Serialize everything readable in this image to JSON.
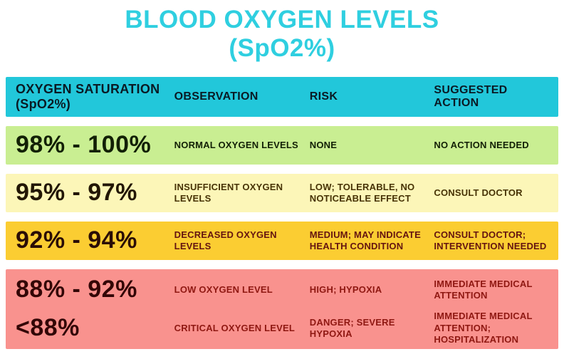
{
  "title": {
    "line1": "BLOOD OXYGEN LEVELS",
    "line2": "(SpO2%)"
  },
  "colors": {
    "title_text": "#2fcfe0",
    "header_bg": "#22c7da",
    "header_text": "#0a1a24",
    "row_green_bg": "#c9ee92",
    "row_green_text": "#122005",
    "row_paleyellow_bg": "#fcf6b8",
    "row_paleyellow_range_text": "#221604",
    "row_paleyellow_small_text": "#473305",
    "row_gold_bg": "#fbcd32",
    "row_gold_range_text": "#2a0d06",
    "row_gold_small_text": "#641410",
    "row_red_bg": "#f9928e",
    "row_red_range_text": "#330606",
    "row_red_small_text": "#8f1812"
  },
  "header": {
    "saturation_line1": "OXYGEN SATURATION",
    "saturation_line2": "(SpO2%)",
    "observation": "OBSERVATION",
    "risk": "RISK",
    "action": "SUGGESTED ACTION"
  },
  "rows": [
    {
      "range": "98% - 100%",
      "observation": "NORMAL OXYGEN LEVELS",
      "risk": "NONE",
      "action": "NO ACTION NEEDED"
    },
    {
      "range": "95% - 97%",
      "observation": "INSUFFICIENT OXYGEN LEVELS",
      "risk": "LOW; TOLERABLE, NO NOTICEABLE EFFECT",
      "action": "CONSULT DOCTOR"
    },
    {
      "range": "92% - 94%",
      "observation": "DECREASED OXYGEN LEVELS",
      "risk": "MEDIUM; MAY INDICATE HEALTH CONDITION",
      "action": "CONSULT DOCTOR; INTERVENTION NEEDED"
    },
    {
      "range": "88% - 92%",
      "observation": "LOW OXYGEN LEVEL",
      "risk": "HIGH; HYPOXIA",
      "action": "IMMEDIATE MEDICAL ATTENTION"
    },
    {
      "range": "<88%",
      "observation": "CRITICAL OXYGEN LEVEL",
      "risk": "DANGER; SEVERE HYPOXIA",
      "action": "IMMEDIATE MEDICAL ATTENTION; HOSPITALIZATION"
    }
  ],
  "chart_data": {
    "type": "table",
    "title": "BLOOD OXYGEN LEVELS (SpO2%)",
    "columns": [
      "OXYGEN SATURATION (SpO2%)",
      "OBSERVATION",
      "RISK",
      "SUGGESTED ACTION"
    ],
    "rows": [
      [
        "98% - 100%",
        "NORMAL OXYGEN LEVELS",
        "NONE",
        "NO ACTION NEEDED"
      ],
      [
        "95% - 97%",
        "INSUFFICIENT OXYGEN LEVELS",
        "LOW; TOLERABLE, NO NOTICEABLE EFFECT",
        "CONSULT DOCTOR"
      ],
      [
        "92% - 94%",
        "DECREASED OXYGEN LEVELS",
        "MEDIUM; MAY INDICATE HEALTH CONDITION",
        "CONSULT DOCTOR; INTERVENTION NEEDED"
      ],
      [
        "88% - 92%",
        "LOW OXYGEN LEVEL",
        "HIGH; HYPOXIA",
        "IMMEDIATE MEDICAL ATTENTION"
      ],
      [
        "<88%",
        "CRITICAL OXYGEN LEVEL",
        "DANGER; SEVERE HYPOXIA",
        "IMMEDIATE MEDICAL ATTENTION; HOSPITALIZATION"
      ]
    ],
    "row_colors": [
      "#c9ee92",
      "#fcf6b8",
      "#fbcd32",
      "#f9928e",
      "#f9928e"
    ],
    "legend_position": "none",
    "grid": false
  }
}
